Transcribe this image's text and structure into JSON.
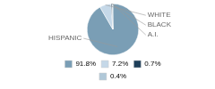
{
  "chart_data": {
    "type": "pie",
    "categories": [
      "HISPANIC",
      "WHITE",
      "BLACK",
      "A.I."
    ],
    "values": [
      91.8,
      7.2,
      0.7,
      0.4
    ],
    "value_labels": [
      "91.8%",
      "7.2%",
      "0.7%",
      "0.4%"
    ],
    "colors": [
      "#7a9eb5",
      "#c5d8e8",
      "#1e3f5a",
      "#b0c8d8"
    ],
    "legend": "bottom"
  }
}
